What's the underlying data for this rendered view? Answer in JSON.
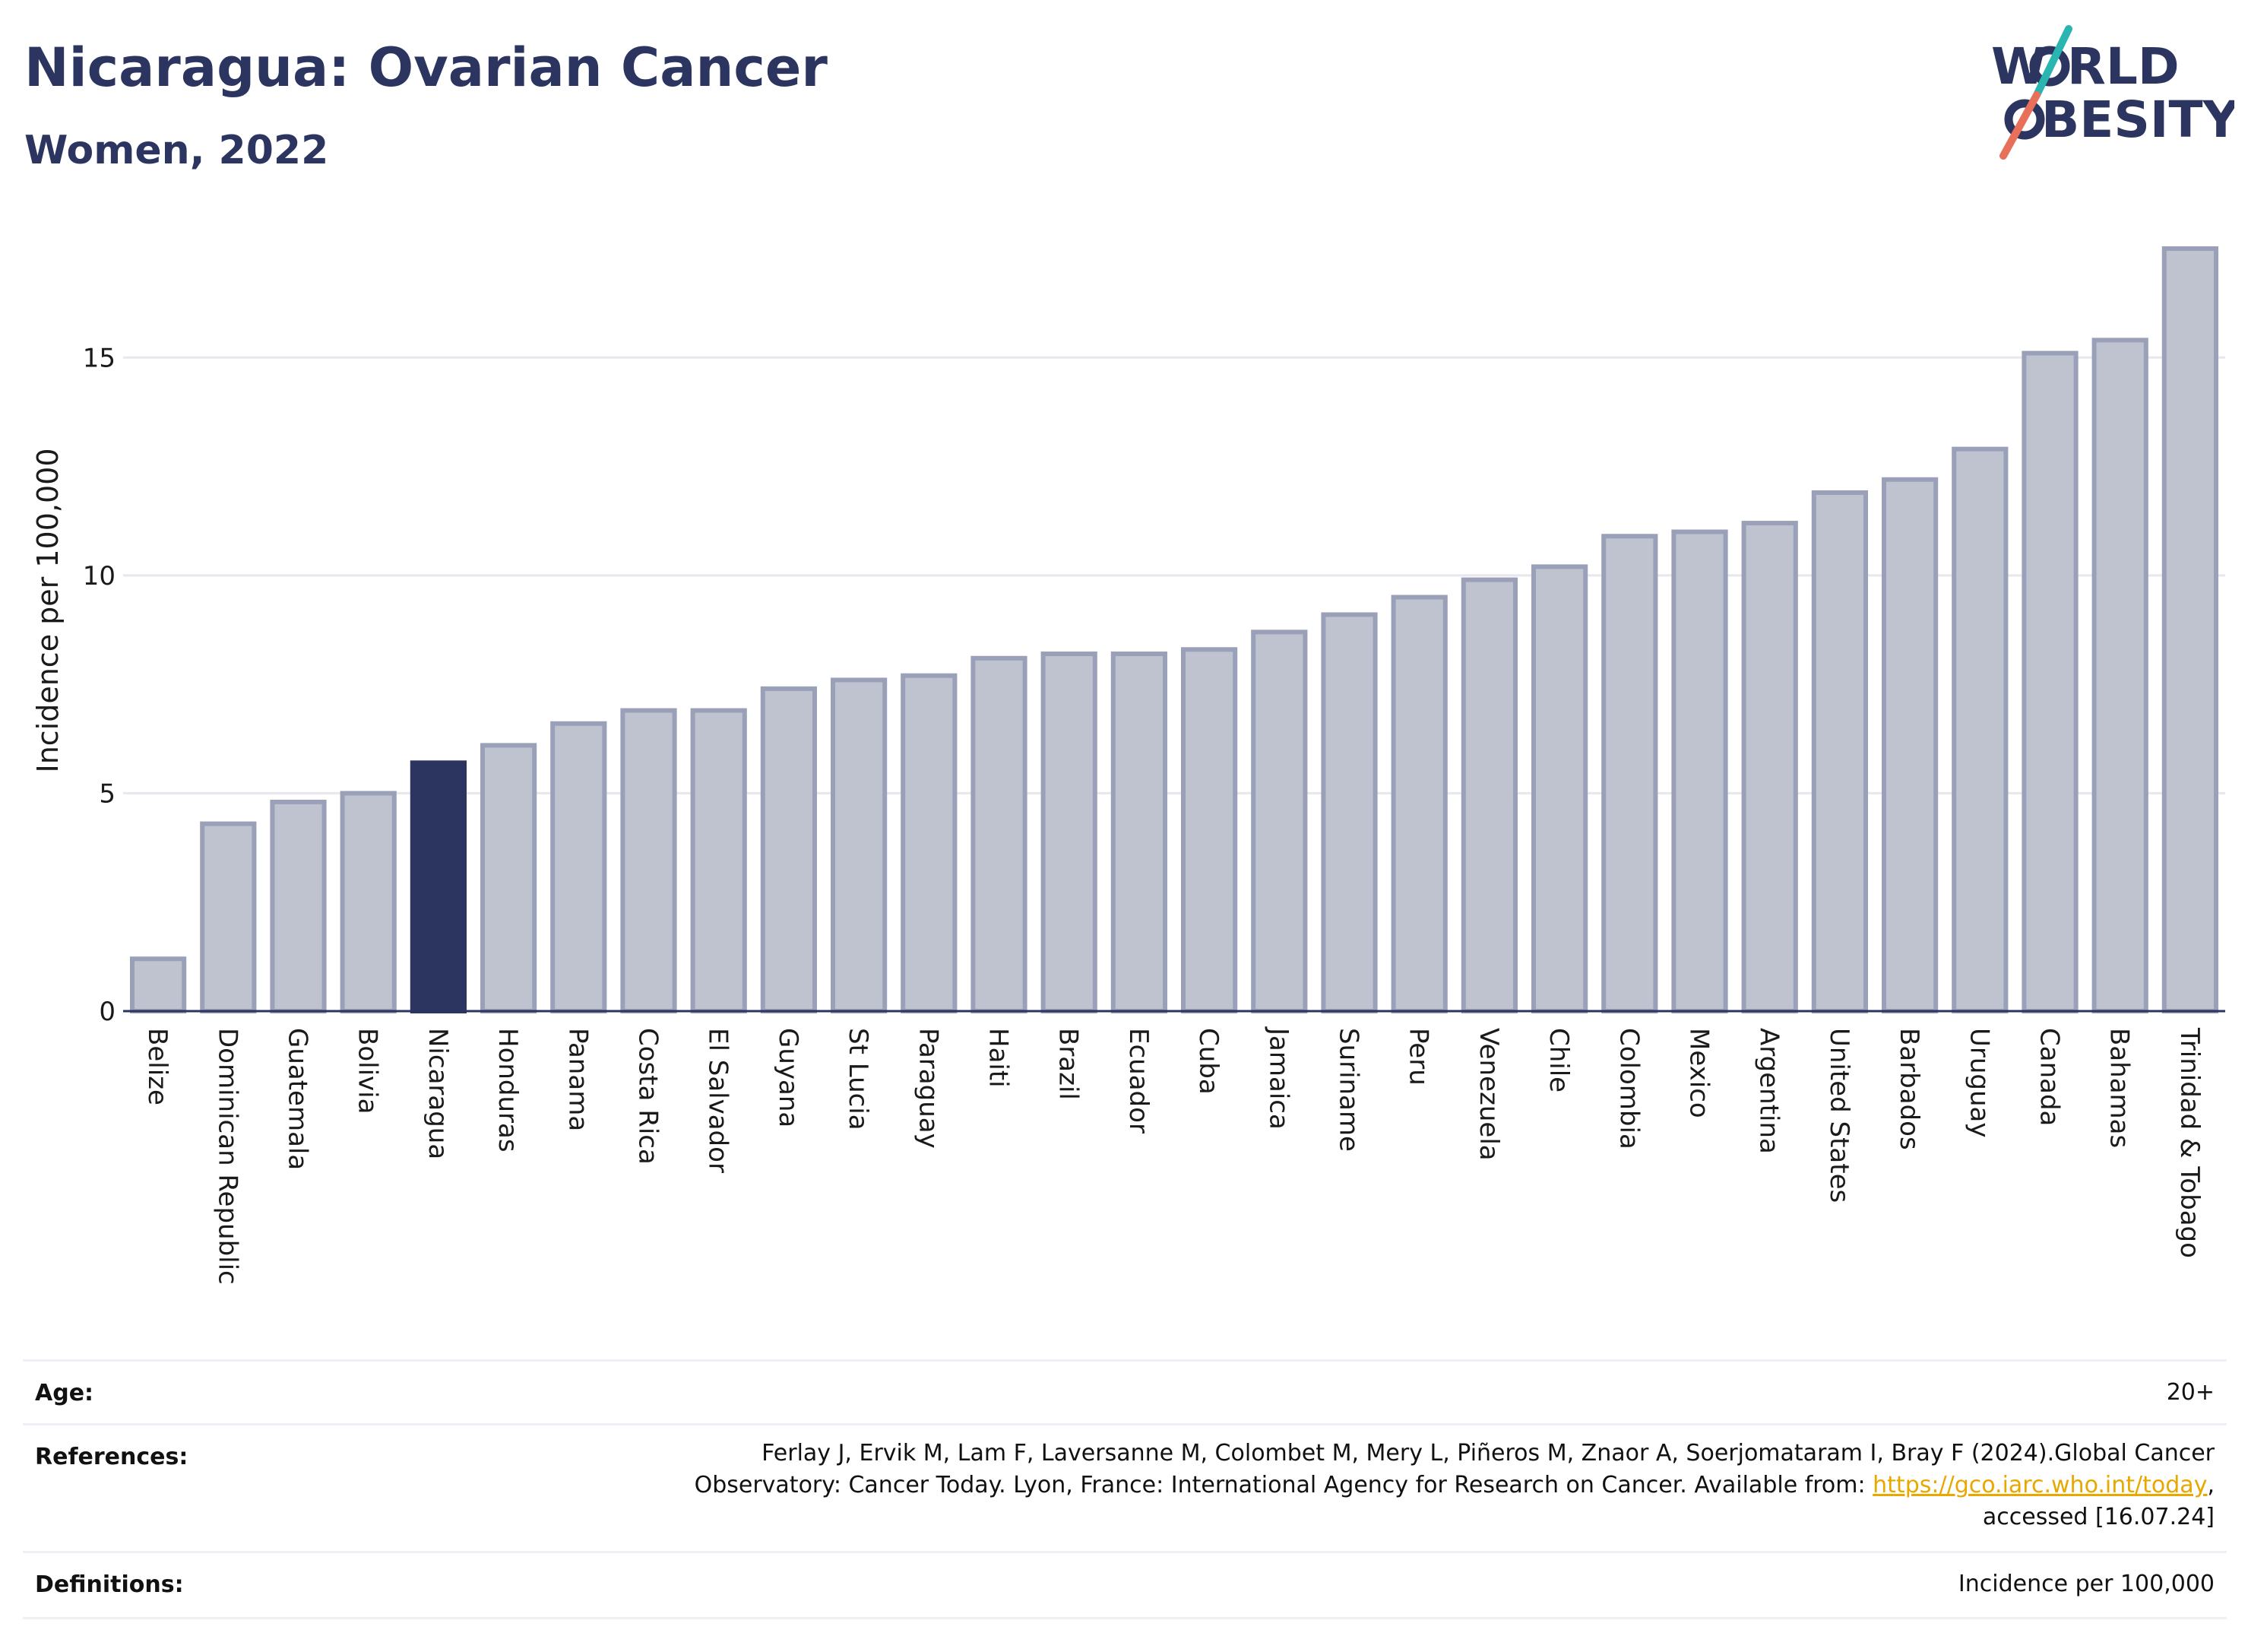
{
  "header": {
    "title": "Nicaragua: Ovarian Cancer",
    "subtitle": "Women, 2022"
  },
  "logo": {
    "line1": "W",
    "line1b": "RLD",
    "line2": "BESITY",
    "colors": {
      "text": "#2b3560",
      "slash_top": "#2bb5b0",
      "slash_bottom": "#e8705a"
    }
  },
  "chart_data": {
    "type": "bar",
    "ylabel": "Incidence per 100,000",
    "ylim": [
      0,
      17.5
    ],
    "yticks": [
      0,
      5,
      10,
      15
    ],
    "grid": true,
    "highlight": "Nicaragua",
    "colors": {
      "bar": "#bfc3d0",
      "bar_border": "#9aa0b8",
      "highlight": "#2b3560",
      "grid": "#e6e8ee"
    },
    "categories": [
      "Belize",
      "Dominican Republic",
      "Guatemala",
      "Bolivia",
      "Nicaragua",
      "Honduras",
      "Panama",
      "Costa Rica",
      "El Salvador",
      "Guyana",
      "St Lucia",
      "Paraguay",
      "Haiti",
      "Brazil",
      "Ecuador",
      "Cuba",
      "Jamaica",
      "Suriname",
      "Peru",
      "Venezuela",
      "Chile",
      "Colombia",
      "Mexico",
      "Argentina",
      "United States",
      "Barbados",
      "Uruguay",
      "Canada",
      "Bahamas",
      "Trinidad & Tobago"
    ],
    "values": [
      1.2,
      4.3,
      4.8,
      5.0,
      5.7,
      6.1,
      6.6,
      6.9,
      6.9,
      7.4,
      7.6,
      7.7,
      8.1,
      8.2,
      8.2,
      8.3,
      8.7,
      9.1,
      9.5,
      9.9,
      10.2,
      10.9,
      11.0,
      11.2,
      11.9,
      12.2,
      12.9,
      15.1,
      15.4,
      17.5
    ]
  },
  "meta": {
    "age_label": "Age:",
    "age_value": "20+",
    "references_label": "References:",
    "references_line1": "Ferlay J, Ervik M, Lam F, Laversanne M, Colombet M, Mery L, Piñeros M, Znaor A, Soerjomataram I, Bray F (2024).Global Cancer",
    "references_line2a": "Observatory: Cancer Today. Lyon, France: International Agency for Research on Cancer. Available from: ",
    "references_link": "https://gco.iarc.who.int/today",
    "references_line2b": ",",
    "references_line3": "accessed [16.07.24]",
    "definitions_label": "Definitions:",
    "definitions_value": "Incidence per 100,000"
  }
}
